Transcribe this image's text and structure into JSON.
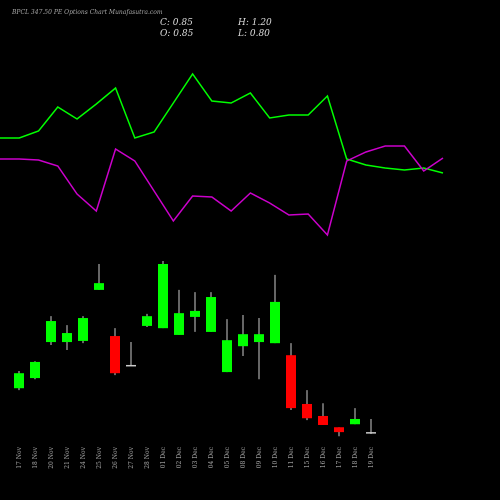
{
  "header": {
    "title": "BPCL 347.50 PE Options Chart Munafasutra.com",
    "close": "C: 0.85",
    "high": "H: 1.20",
    "open": "O: 0.85",
    "low": "L: 0.80"
  },
  "chart_data": [
    {
      "type": "candlestick",
      "categories": [
        "17 Nov",
        "18 Nov",
        "20 Nov",
        "21 Nov",
        "24 Nov",
        "25 Nov",
        "26 Nov",
        "27 Nov",
        "28 Nov",
        "01 Dec",
        "02 Dec",
        "03 Dec",
        "04 Dec",
        "05 Dec",
        "08 Dec",
        "09 Dec",
        "10 Dec",
        "11 Dec",
        "15 Dec",
        "16 Dec",
        "17 Dec",
        "18 Dec",
        "19 Dec"
      ],
      "open": [
        2.02,
        2.29,
        3.25,
        3.25,
        3.28,
        4.64,
        3.41,
        2.64,
        3.68,
        3.62,
        3.44,
        3.92,
        3.52,
        2.45,
        3.14,
        3.25,
        3.22,
        2.9,
        1.6,
        1.28,
        0.98,
        1.06,
        0.85
      ],
      "close": [
        2.42,
        2.72,
        3.81,
        3.49,
        3.89,
        4.82,
        2.42,
        2.64,
        3.94,
        5.33,
        4.02,
        4.08,
        4.45,
        3.3,
        3.46,
        3.46,
        4.32,
        1.49,
        1.22,
        1.04,
        0.85,
        1.2,
        0.85
      ],
      "high": [
        2.48,
        2.74,
        3.94,
        3.7,
        3.94,
        5.33,
        3.62,
        3.25,
        4.0,
        5.41,
        4.64,
        4.58,
        4.58,
        3.86,
        3.97,
        3.89,
        5.04,
        3.22,
        1.97,
        1.62,
        0.98,
        1.49,
        1.2
      ],
      "low": [
        1.97,
        2.26,
        3.17,
        3.04,
        3.22,
        4.64,
        2.37,
        2.61,
        3.65,
        3.62,
        3.44,
        3.52,
        3.52,
        2.45,
        2.88,
        2.26,
        3.22,
        1.44,
        1.17,
        1.04,
        0.74,
        1.06,
        0.8
      ],
      "up_color": "#00ff00",
      "down_color": "#ff0000",
      "ylim": [
        0.64,
        5.57
      ]
    },
    {
      "type": "line",
      "x": [
        0,
        1,
        2,
        3,
        4,
        5,
        6,
        7,
        8,
        9,
        10,
        11,
        12,
        13,
        14,
        15,
        16,
        17,
        18,
        19,
        20,
        21,
        22,
        23
      ],
      "xlim": [
        0,
        23
      ],
      "ylim": [
        0,
        190
      ],
      "series": [
        {
          "color": "#00ff00",
          "values": [
            112,
            112,
            119,
            143,
            131,
            146,
            162,
            112,
            118,
            147,
            176,
            149,
            147,
            157,
            132,
            135,
            135,
            154,
            91,
            85,
            82,
            80,
            82,
            77
          ]
        },
        {
          "color": "#cc00cc",
          "values": [
            91,
            91,
            90,
            84,
            56,
            39,
            101,
            89,
            59,
            29,
            54,
            53,
            39,
            57,
            47,
            35,
            36,
            15,
            89,
            98,
            104,
            104,
            79,
            92
          ]
        }
      ]
    }
  ]
}
